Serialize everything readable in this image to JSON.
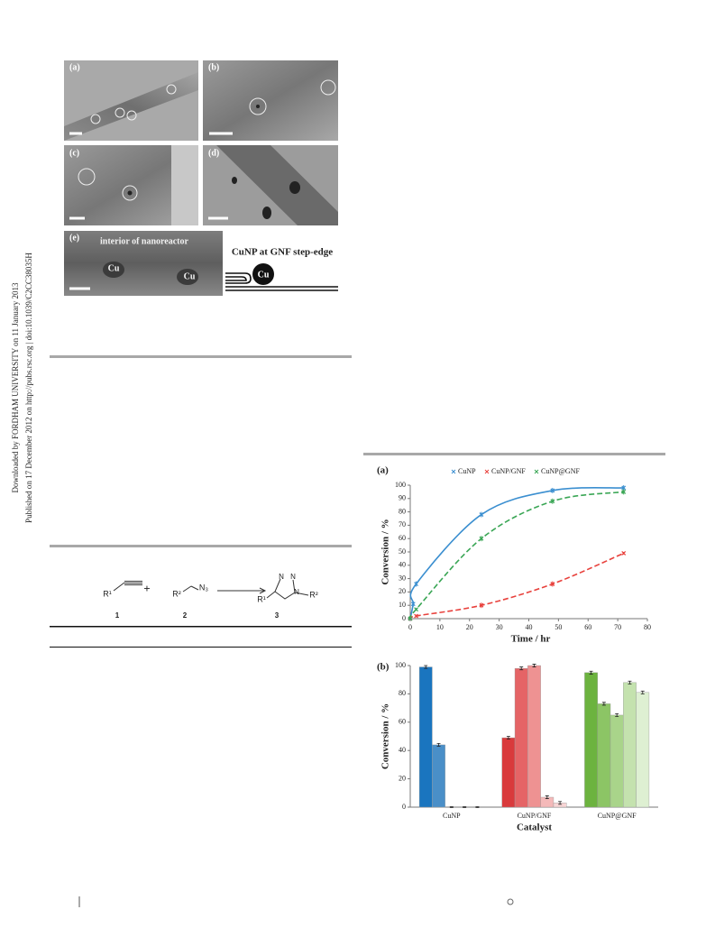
{
  "sidebar": {
    "downloaded": "Downloaded by FORDHAM UNIVERSITY on 11 January 2013",
    "published": "Published on 17 December 2012 on http://pubs.rsc.org | doi:10.1039/C2CC38035H"
  },
  "figure_1": {
    "panel_labels": [
      "(a)",
      "(b)",
      "(c)",
      "(d)",
      "(e)"
    ],
    "interior_label": "interior of nanoreactor",
    "cu_labels": [
      "Cu",
      "Cu"
    ],
    "step_edge_label": "CuNP at GNF step-edge",
    "diagram_cu_label": "Cu"
  },
  "scheme": {
    "r1": "R¹",
    "r2": "R²",
    "n3": "N₃",
    "plus": "+",
    "ring_atoms": [
      "N",
      "N",
      "N"
    ],
    "compound_labels": [
      "1",
      "2",
      "3"
    ]
  },
  "chart_data": [
    {
      "type": "line",
      "panel_label": "(a)",
      "x_label": "Time / hr",
      "y_label": "Conversion / %",
      "xlim": [
        0,
        80
      ],
      "xticks": [
        0,
        10,
        20,
        30,
        40,
        50,
        60,
        70,
        80
      ],
      "ylim": [
        0,
        100
      ],
      "yticks": [
        0,
        10,
        20,
        30,
        40,
        50,
        60,
        70,
        80,
        90,
        100
      ],
      "series": [
        {
          "name": "CuNP",
          "color": "#3b8fd0",
          "dashed": false,
          "x": [
            0,
            1,
            2,
            24,
            48,
            72
          ],
          "values": [
            0,
            11,
            26,
            78,
            96,
            98
          ],
          "errors": [
            0,
            2,
            2,
            2,
            2,
            2
          ]
        },
        {
          "name": "CuNP/GNF",
          "color": "#e8413c",
          "dashed": true,
          "x": [
            0,
            2,
            24,
            48,
            72
          ],
          "values": [
            0,
            2,
            10,
            26,
            49
          ],
          "errors": [
            0,
            1,
            2,
            2,
            1
          ]
        },
        {
          "name": "CuNP@GNF",
          "color": "#3aa655",
          "dashed": true,
          "x": [
            0,
            2,
            24,
            48,
            72
          ],
          "values": [
            0,
            7,
            60,
            88,
            95
          ],
          "errors": [
            0,
            1,
            2,
            2,
            2
          ]
        }
      ]
    },
    {
      "type": "bar",
      "panel_label": "(b)",
      "x_label": "Catalyst",
      "y_label": "Conversion / %",
      "categories": [
        "CuNP",
        "CuNP/GNF",
        "CuNP@GNF"
      ],
      "ylim": [
        0,
        100
      ],
      "yticks": [
        0,
        20,
        40,
        60,
        80,
        100
      ],
      "values": [
        [
          99,
          44,
          0,
          0,
          0
        ],
        [
          49,
          98,
          100,
          7,
          3
        ],
        [
          95,
          73,
          65,
          88,
          81
        ]
      ],
      "errors": [
        [
          1,
          1,
          0.3,
          0.3,
          0.3
        ],
        [
          1,
          1,
          1,
          1,
          1
        ],
        [
          1,
          1,
          1,
          1,
          1
        ]
      ],
      "colors": [
        [
          "#1a75bf",
          "#4a8fc8",
          "#78aad6",
          "#a4c6e4",
          "#cde0f1"
        ],
        [
          "#d93a3c",
          "#e56466",
          "#ee9292",
          "#f4b9b9",
          "#f8d5d5"
        ],
        [
          "#6cb33f",
          "#8cc565",
          "#a9d48a",
          "#c4e2ae",
          "#def0d2"
        ]
      ]
    }
  ]
}
